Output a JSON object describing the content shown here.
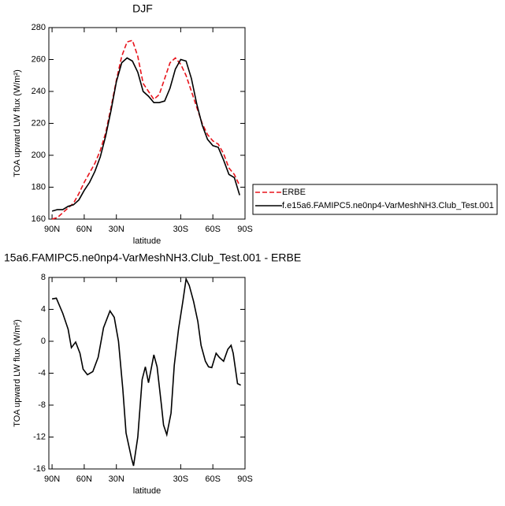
{
  "chart_data": [
    {
      "type": "line",
      "title": "DJF",
      "xlabel": "latitude",
      "ylabel": "TOA upward LW flux (W/m²)",
      "x": [
        90,
        85,
        80,
        75,
        70,
        65,
        60,
        55,
        50,
        45,
        40,
        35,
        30,
        25,
        20,
        15,
        10,
        5,
        0,
        -5,
        -10,
        -15,
        -20,
        -25,
        -30,
        -35,
        -40,
        -45,
        -50,
        -55,
        -60,
        -65,
        -70,
        -75,
        -80,
        -85
      ],
      "series": [
        {
          "name": "ERBE",
          "color": "#e8141c",
          "style": "dashed",
          "values": [
            160,
            161,
            164,
            167,
            170,
            176,
            183,
            189,
            195,
            203,
            214,
            230,
            247,
            262,
            271,
            272,
            262,
            245,
            240,
            235,
            238,
            248,
            258,
            261,
            257,
            250,
            240,
            230,
            220,
            213,
            209,
            207,
            201,
            192,
            188,
            181
          ]
        },
        {
          "name": "f.e15a6.FAMIPC5.ne0np4-VarMeshNH3.Club_Test.001",
          "color": "#000000",
          "style": "solid",
          "values": [
            165,
            166,
            166,
            168,
            169,
            172,
            178,
            183,
            190,
            199,
            212,
            228,
            246,
            258,
            261,
            259,
            252,
            240,
            237,
            233,
            233,
            234,
            242,
            254,
            260,
            259,
            248,
            232,
            219,
            210,
            206,
            205,
            197,
            188,
            186,
            175
          ]
        }
      ],
      "xlim": [
        93,
        -90
      ],
      "ylim": [
        160,
        280
      ],
      "xticks": [
        {
          "value": 90,
          "label": "90N"
        },
        {
          "value": 60,
          "label": "60N"
        },
        {
          "value": 30,
          "label": "30N"
        },
        {
          "value": -30,
          "label": "30S"
        },
        {
          "value": -60,
          "label": "60S"
        },
        {
          "value": -90,
          "label": "90S"
        }
      ],
      "yticks": [
        160,
        180,
        200,
        220,
        240,
        260,
        280
      ],
      "legend": "right"
    },
    {
      "type": "line",
      "title": "15a6.FAMIPC5.ne0np4-VarMeshNH3.Club_Test.001 - ERBE",
      "xlabel": "latitude",
      "ylabel": "TOA upward LW flux (W/m²)",
      "x": [
        90,
        86,
        80,
        75,
        72,
        68,
        64,
        61,
        57,
        52,
        47,
        42,
        36,
        32,
        28,
        24,
        21,
        16,
        14,
        10,
        6,
        3,
        0,
        -5,
        -8,
        -12,
        -14,
        -17,
        -21,
        -24,
        -28,
        -32,
        -35,
        -38,
        -42,
        -46,
        -49,
        -53,
        -56,
        -59,
        -63,
        -66,
        -70,
        -74,
        -77,
        -79,
        -83,
        -86
      ],
      "series": [
        {
          "name": null,
          "color": "#000000",
          "style": "solid",
          "values": [
            5.3,
            5.4,
            3.5,
            1.5,
            -0.8,
            -0.1,
            -1.5,
            -3.5,
            -4.2,
            -3.8,
            -2,
            1.7,
            3.8,
            3,
            0,
            -6,
            -11.5,
            -14.6,
            -15.6,
            -12,
            -4.8,
            -3.2,
            -5.2,
            -1.7,
            -3.2,
            -8,
            -10.5,
            -11.7,
            -9,
            -3,
            1.5,
            5,
            7.8,
            7,
            5,
            2.5,
            -0.5,
            -2.5,
            -3.2,
            -3.3,
            -1.5,
            -2,
            -2.5,
            -1,
            -0.5,
            -1.5,
            -5.3,
            -5.5
          ]
        }
      ],
      "xlim": [
        93,
        -90
      ],
      "ylim": [
        -16,
        8
      ],
      "xticks": [
        {
          "value": 90,
          "label": "90N"
        },
        {
          "value": 60,
          "label": "60N"
        },
        {
          "value": 30,
          "label": "30N"
        },
        {
          "value": -30,
          "label": "30S"
        },
        {
          "value": -60,
          "label": "60S"
        },
        {
          "value": -90,
          "label": "90S"
        }
      ],
      "yticks": [
        -16,
        -12,
        -8,
        -4,
        0,
        4,
        8
      ]
    }
  ]
}
